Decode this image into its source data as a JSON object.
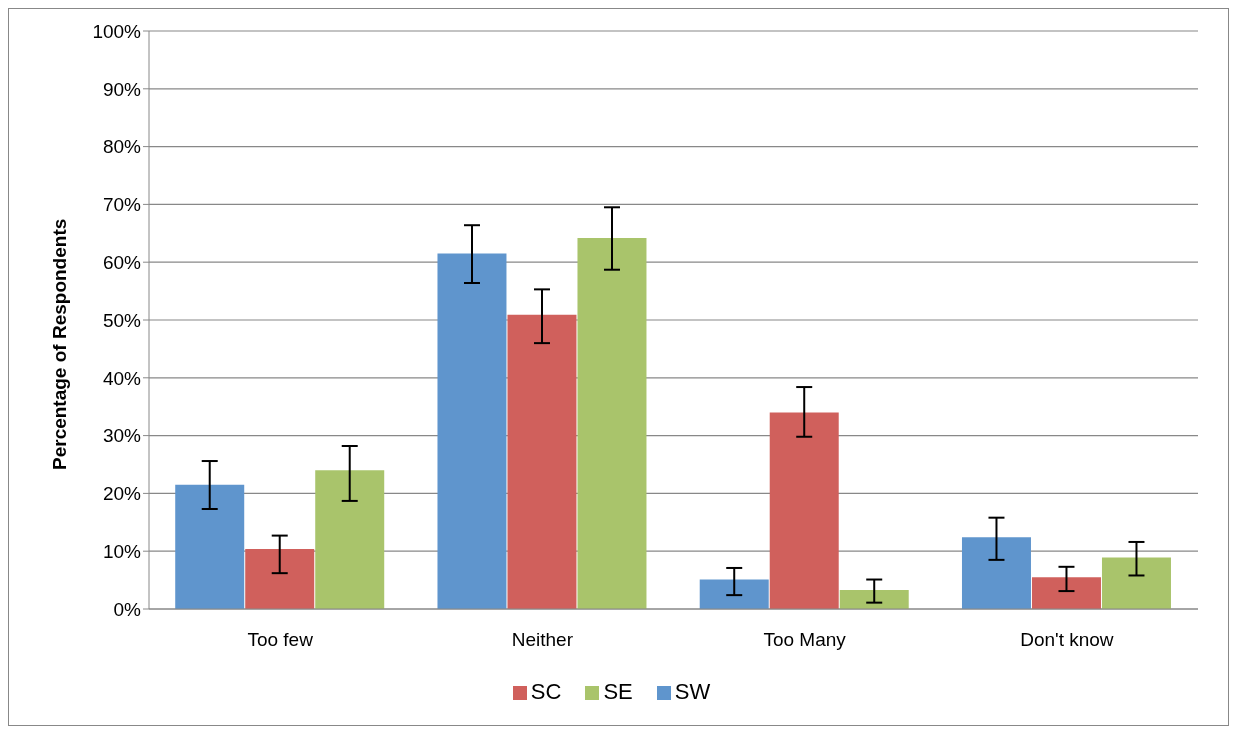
{
  "chart_data": {
    "type": "bar",
    "ylabel": "Percentage of Respondents",
    "categories": [
      "Too few",
      "Neither",
      "Too Many",
      "Don't know"
    ],
    "series": [
      {
        "name": "SW",
        "color": "#5f95cd",
        "values": [
          21.5,
          61.5,
          5.1,
          12.4
        ],
        "errors": [
          [
            17.3,
            25.6
          ],
          [
            56.4,
            66.4
          ],
          [
            2.4,
            7.1
          ],
          [
            8.5,
            15.8
          ]
        ]
      },
      {
        "name": "SC",
        "color": "#d0605c",
        "values": [
          10.4,
          50.9,
          34,
          5.5
        ],
        "errors": [
          [
            6.2,
            12.7
          ],
          [
            46,
            55.3
          ],
          [
            29.8,
            38.4
          ],
          [
            3.1,
            7.3
          ]
        ]
      },
      {
        "name": "SE",
        "color": "#a9c46b",
        "values": [
          24,
          64.2,
          3.3,
          8.9
        ],
        "errors": [
          [
            18.7,
            28.2
          ],
          [
            58.7,
            69.5
          ],
          [
            1.1,
            5.1
          ],
          [
            5.8,
            11.6
          ]
        ]
      }
    ],
    "ylim": [
      0,
      100
    ],
    "yticks": [
      {
        "value": 0,
        "label": "0%"
      },
      {
        "value": 10,
        "label": "10%"
      },
      {
        "value": 20,
        "label": "20%"
      },
      {
        "value": 30,
        "label": "30%"
      },
      {
        "value": 40,
        "label": "40%"
      },
      {
        "value": 50,
        "label": "50%"
      },
      {
        "value": 60,
        "label": "60%"
      },
      {
        "value": 70,
        "label": "70%"
      },
      {
        "value": 80,
        "label": "80%"
      },
      {
        "value": 90,
        "label": "90%"
      },
      {
        "value": 100,
        "label": "100%"
      }
    ],
    "grid": "y",
    "legend": "bottom"
  }
}
